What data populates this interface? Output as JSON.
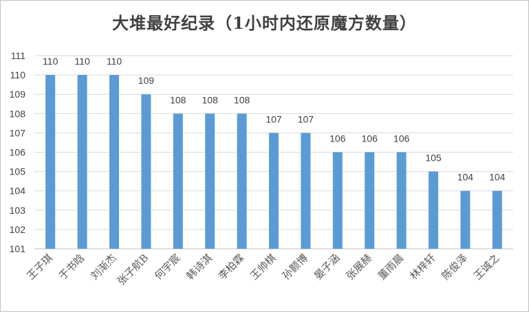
{
  "chart_data": {
    "type": "bar",
    "title": "大堆最好纪录（1小时内还原魔方数量）",
    "categories": [
      "王子琪",
      "于书晗",
      "刘渐杰",
      "张子航B",
      "何宇宸",
      "韩诗淇",
      "李柏霖",
      "王帅棋",
      "孙颢博",
      "晏子涵",
      "张展赫",
      "董雨晨",
      "林梓轩",
      "陈俊泽",
      "王诚之"
    ],
    "values": [
      110,
      110,
      110,
      109,
      108,
      108,
      108,
      107,
      107,
      106,
      106,
      106,
      105,
      104,
      104
    ],
    "ylim": [
      101,
      111
    ],
    "yticks": [
      "101",
      "102",
      "103",
      "104",
      "105",
      "106",
      "107",
      "108",
      "109",
      "110",
      "111"
    ],
    "grid": true,
    "bar_color": "#5b9bd5",
    "grid_color": "#d9d9d9"
  }
}
